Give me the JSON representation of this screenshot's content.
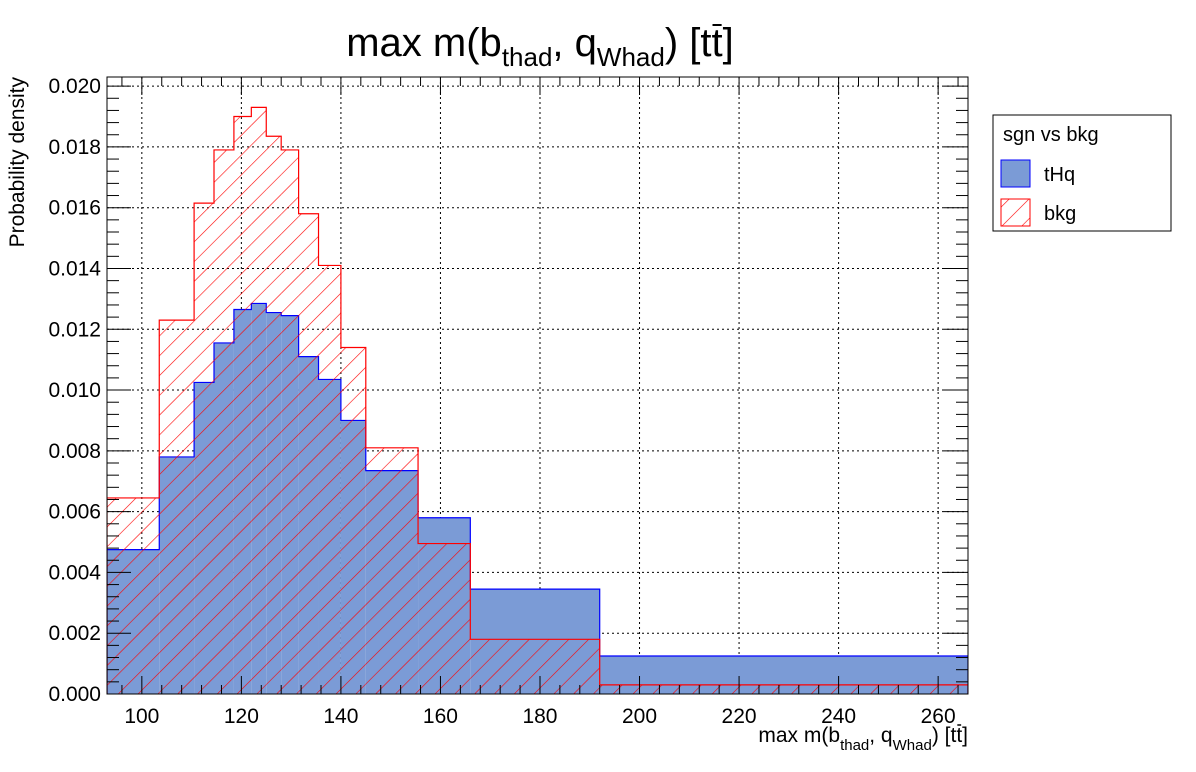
{
  "chart_data": {
    "type": "histogram",
    "title": {
      "main": "max m(b",
      "sub1": "thad",
      "mid": ", q",
      "sub2": "Whad",
      "end": ") [t",
      "tbar": "t",
      "close": "]"
    },
    "xlabel": {
      "main": "max m(b",
      "sub1": "thad",
      "mid": ", q",
      "sub2": "Whad",
      "end": ") [t",
      "tbar": "t",
      "close": "]"
    },
    "ylabel": "Probability density",
    "xlim": [
      93,
      266
    ],
    "ylim": [
      0,
      0.0203
    ],
    "grid": true,
    "x_ticks": [
      100,
      120,
      140,
      160,
      180,
      200,
      220,
      240,
      260
    ],
    "y_ticks": [
      "0.000",
      "0.002",
      "0.004",
      "0.006",
      "0.008",
      "0.010",
      "0.012",
      "0.014",
      "0.016",
      "0.018",
      "0.020"
    ],
    "bin_edges": [
      93,
      103.5,
      110.5,
      114.5,
      118.5,
      122,
      125,
      128,
      131.5,
      135.5,
      140,
      145,
      155.5,
      166,
      192,
      266
    ],
    "series": [
      {
        "name": "tHq",
        "fill": "#7b9bd6",
        "line": "#0000ff",
        "style": "solid",
        "values": [
          0.00475,
          0.0078,
          0.01025,
          0.01155,
          0.01265,
          0.01285,
          0.01255,
          0.01245,
          0.0111,
          0.01035,
          0.009,
          0.00735,
          0.0058,
          0.00345,
          0.00125
        ]
      },
      {
        "name": "bkg",
        "fill": "none",
        "line": "#ff0000",
        "style": "hatched",
        "values": [
          0.00645,
          0.0123,
          0.01615,
          0.0179,
          0.019,
          0.0193,
          0.01835,
          0.0179,
          0.0158,
          0.0141,
          0.0114,
          0.0081,
          0.00495,
          0.0018,
          0.0003
        ]
      }
    ],
    "legend": {
      "title": "sgn vs bkg",
      "position": "right",
      "entries": [
        "tHq",
        "bkg"
      ]
    }
  }
}
